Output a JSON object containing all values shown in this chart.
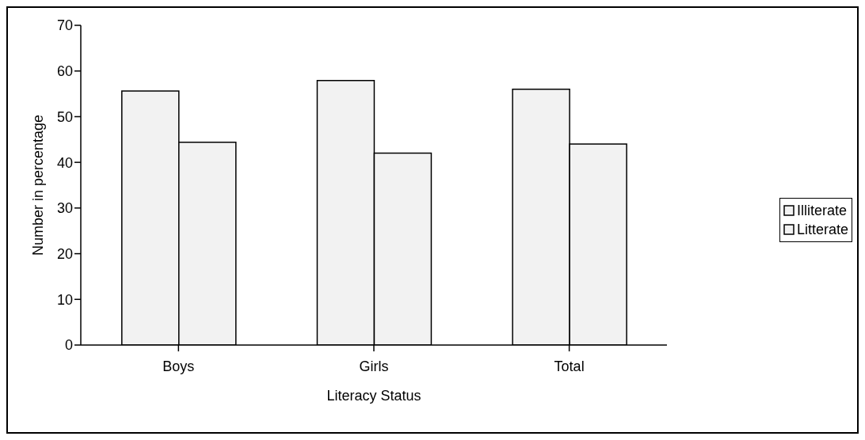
{
  "chart_data": {
    "type": "bar",
    "xlabel": "Literacy Status",
    "ylabel": "Number in percentage",
    "categories": [
      "Boys",
      "Girls",
      "Total"
    ],
    "series": [
      {
        "name": "Illiterate",
        "color": "#f2f2f2",
        "values": [
          55.6,
          57.9,
          56.0
        ]
      },
      {
        "name": "Litterate",
        "color": "#f2f2f2",
        "values": [
          44.4,
          42.0,
          44.0
        ]
      }
    ],
    "ylim": [
      0,
      70
    ],
    "yticks": [
      0,
      10,
      20,
      30,
      40,
      50,
      60,
      70
    ],
    "grid": false,
    "legend": "right"
  }
}
